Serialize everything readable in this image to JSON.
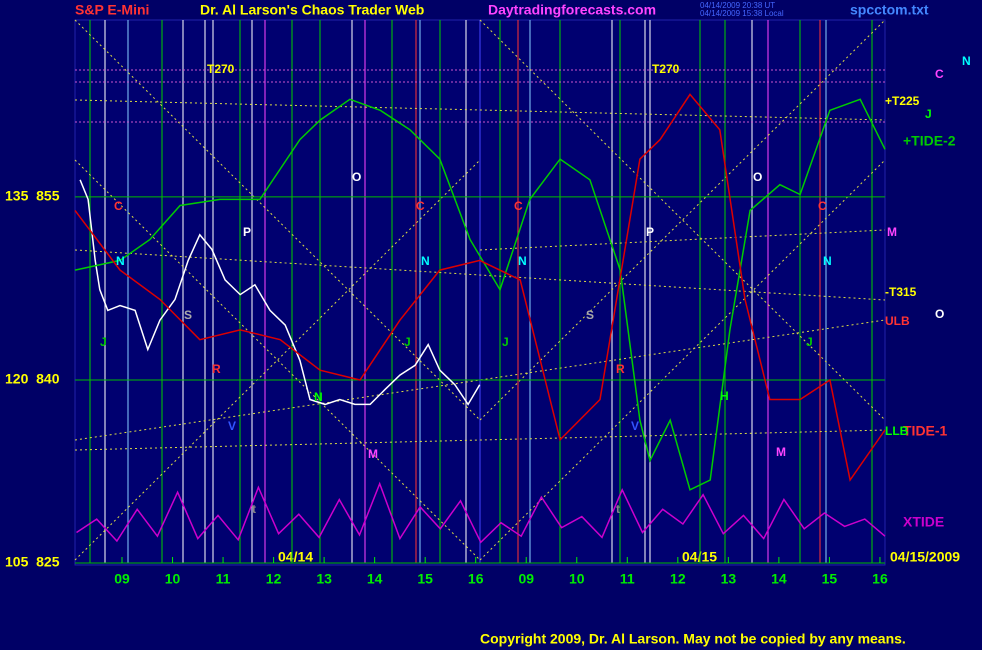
{
  "chart_data": {
    "type": "line",
    "title": "S&P E-Mini",
    "subtitle": "Dr. Al Larson's Chaos Trader Web",
    "site": "Daytradingforecasts.com",
    "file": "spcctom.txt",
    "timestamps": [
      "04/14/2009 20:38 UT",
      "04/14/2009 15:38 Local"
    ],
    "copyright": "Copyright 2009, Dr. Al Larson. May not be copied by any means.",
    "date_labels": [
      "04/14",
      "04/15",
      "04/15/2009"
    ],
    "annotations": [
      "T270",
      "T270",
      "+T225",
      "-T315",
      "ULB",
      "LLB",
      "C",
      "N",
      "J",
      "M",
      "O",
      "C",
      "N",
      "J",
      "S",
      "R",
      "V",
      "P",
      "O",
      "N",
      "M",
      "C",
      "N",
      "J",
      "C",
      "N",
      "J",
      "S",
      "V",
      "P",
      "R",
      "H",
      "O",
      "M",
      "C",
      "N",
      "J",
      "t",
      "t"
    ],
    "xlim": [
      -0.93,
      15.1
    ],
    "xticks": [
      {
        "value": 0,
        "label": "09"
      },
      {
        "value": 1,
        "label": "10"
      },
      {
        "value": 2,
        "label": "11"
      },
      {
        "value": 3,
        "label": "12"
      },
      {
        "value": 4,
        "label": "13"
      },
      {
        "value": 5,
        "label": "14"
      },
      {
        "value": 6,
        "label": "15"
      },
      {
        "value": 7,
        "label": "16"
      },
      {
        "value": 8,
        "label": "09"
      },
      {
        "value": 9,
        "label": "10"
      },
      {
        "value": 10,
        "label": "11"
      },
      {
        "value": 11,
        "label": "12"
      },
      {
        "value": 12,
        "label": "13"
      },
      {
        "value": 13,
        "label": "14"
      },
      {
        "value": 14,
        "label": "15"
      },
      {
        "value": 15,
        "label": "16"
      }
    ],
    "ylim": [
      825,
      869.5
    ],
    "yticks": [
      {
        "value": 825,
        "label": "105  825"
      },
      {
        "value": 840,
        "label": "120  840"
      },
      {
        "value": 855,
        "label": "135  855"
      }
    ],
    "grid": true,
    "series": [
      {
        "color": "#ffffff",
        "x": [
          -0.83,
          -0.67,
          -0.53,
          -0.44,
          -0.28,
          -0.04,
          0.26,
          0.51,
          0.75,
          1.05,
          1.31,
          1.54,
          1.78,
          2.04,
          2.34,
          2.63,
          2.93,
          3.23,
          3.52,
          3.72,
          4.02,
          4.31,
          4.61,
          4.91,
          5.2,
          5.5,
          5.8,
          6.06,
          6.29,
          6.59,
          6.85,
          7.08
        ],
        "values": [
          856.4,
          854.8,
          849.8,
          847.4,
          845.7,
          846.1,
          845.7,
          842.5,
          844.9,
          846.6,
          849.8,
          851.9,
          850.7,
          848.2,
          847.0,
          847.8,
          845.7,
          844.5,
          841.6,
          838.4,
          838.0,
          838.4,
          838.0,
          838.0,
          839.2,
          840.4,
          841.2,
          842.9,
          840.8,
          839.6,
          838.0,
          839.6
        ]
      },
      {
        "name": "+TIDE-2",
        "color": "#00cc00",
        "x": [
          -0.93,
          -0.04,
          0.55,
          1.15,
          1.94,
          2.73,
          3.52,
          3.92,
          4.51,
          5.11,
          5.7,
          6.29,
          6.89,
          7.48,
          8.07,
          8.67,
          9.26,
          9.86,
          10.25,
          10.45,
          10.85,
          11.24,
          11.64,
          12.03,
          12.43,
          13.02,
          13.42,
          14.01,
          14.61,
          15.1
        ],
        "values": [
          849.0,
          849.8,
          851.5,
          854.3,
          854.8,
          854.8,
          859.7,
          861.3,
          863.0,
          862.1,
          860.5,
          858.1,
          851.5,
          847.4,
          854.8,
          858.1,
          856.4,
          849.0,
          836.7,
          833.4,
          836.7,
          831.0,
          831.8,
          844.1,
          853.9,
          856.0,
          855.2,
          862.1,
          863.0,
          858.9
        ]
      },
      {
        "name": "TIDE-1",
        "color": "#dd0000",
        "x": [
          -0.93,
          -0.04,
          0.75,
          1.54,
          2.34,
          3.13,
          3.92,
          4.71,
          5.5,
          6.29,
          7.08,
          7.88,
          8.67,
          9.46,
          10.25,
          10.65,
          11.24,
          11.83,
          12.33,
          12.82,
          13.42,
          14.01,
          14.41,
          15.1
        ],
        "values": [
          853.9,
          849.0,
          846.6,
          843.3,
          844.1,
          843.3,
          840.8,
          840.0,
          844.9,
          849.0,
          849.8,
          848.2,
          835.1,
          838.4,
          858.1,
          859.7,
          863.4,
          860.5,
          846.6,
          838.4,
          838.4,
          840.0,
          831.8,
          835.9
        ]
      },
      {
        "name": "XTIDE",
        "color": "#cc00cc",
        "x": [
          -0.9,
          -0.5,
          -0.1,
          0.3,
          0.7,
          1.1,
          1.5,
          1.9,
          2.3,
          2.7,
          3.1,
          3.5,
          3.9,
          4.3,
          4.7,
          5.1,
          5.5,
          5.9,
          6.3,
          6.7,
          7.1,
          7.5,
          7.9,
          8.3,
          8.7,
          9.1,
          9.5,
          9.9,
          10.3,
          10.7,
          11.1,
          11.5,
          11.9,
          12.3,
          12.7,
          13.1,
          13.5,
          13.9,
          14.3,
          14.7,
          15.1
        ],
        "values": [
          827.5,
          828.6,
          826.8,
          829.4,
          827.2,
          830.8,
          827.0,
          828.9,
          826.9,
          831.2,
          827.4,
          829.0,
          827.1,
          830.2,
          827.3,
          831.5,
          827.0,
          829.6,
          827.8,
          830.1,
          826.7,
          828.3,
          827.2,
          830.4,
          827.9,
          828.8,
          827.1,
          831.0,
          827.5,
          829.4,
          828.2,
          830.6,
          827.4,
          828.9,
          827.0,
          830.2,
          827.8,
          829.1,
          828.0,
          828.6,
          827.2
        ]
      }
    ]
  }
}
